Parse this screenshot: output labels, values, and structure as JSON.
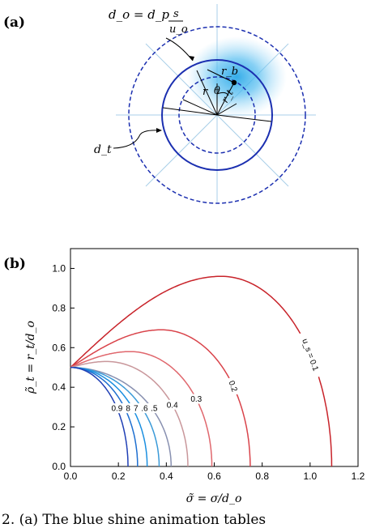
{
  "figure": {
    "panel_a_label": "(a)",
    "panel_b_label": "(b)",
    "schematic_labels": {
      "do_eq": "d_o = d_p",
      "frac_num": "s",
      "frac_den": "u_o",
      "rb": "r_b",
      "r": "r",
      "theta": "θ",
      "rt": "r_t",
      "dt": "d_t"
    }
  },
  "caption": {
    "text": "2. (a) The blue shine animation tables"
  },
  "chart_data": {
    "type": "line",
    "xlabel": "σ̃ = σ/d_o",
    "ylabel": "ρ̃_t = r_t/d_o",
    "xlim": [
      0.0,
      1.2
    ],
    "ylim": [
      0.0,
      1.1
    ],
    "xticks": [
      "0.0",
      "0.2",
      "0.4",
      "0.6",
      "0.8",
      "1.0",
      "1.2"
    ],
    "yticks": [
      "0.0",
      "0.2",
      "0.4",
      "0.6",
      "0.8",
      "1.0"
    ],
    "grid": false,
    "series": [
      {
        "name": "u_s = 0.1",
        "label": "u_s = 0.1",
        "color": "#c8232a",
        "x_end": 1.09,
        "y_peak": 0.96,
        "x_peak": 0.63
      },
      {
        "name": "0.2",
        "label": "0.2",
        "color": "#d9434a",
        "x_end": 0.75,
        "y_peak": 0.69,
        "x_peak": 0.38
      },
      {
        "name": "0.3",
        "label": "0.3",
        "color": "#e0676d",
        "x_end": 0.59,
        "y_peak": 0.58,
        "x_peak": 0.25
      },
      {
        "name": "0.4",
        "label": "0.4",
        "color": "#c9979b",
        "x_end": 0.49,
        "y_peak": 0.53,
        "x_peak": 0.15
      },
      {
        "name": "0.5",
        "label": "0.5",
        "color": "#8890b0",
        "x_end": 0.42,
        "y_peak": 0.5,
        "x_peak": 0.0
      },
      {
        "name": "0.6",
        "label": "0.6",
        "color": "#3a9ad8",
        "x_end": 0.37,
        "y_peak": 0.5,
        "x_peak": 0.0
      },
      {
        "name": "0.7",
        "label": "0.7",
        "color": "#1b8fe0",
        "x_end": 0.32,
        "y_peak": 0.5,
        "x_peak": 0.0
      },
      {
        "name": "0.8",
        "label": "0.8",
        "color": "#1e6fd0",
        "x_end": 0.28,
        "y_peak": 0.5,
        "x_peak": 0.0
      },
      {
        "name": "0.9",
        "label": "0.9",
        "color": "#1f3fb5",
        "x_end": 0.24,
        "y_peak": 0.5,
        "x_peak": 0.0
      }
    ]
  }
}
